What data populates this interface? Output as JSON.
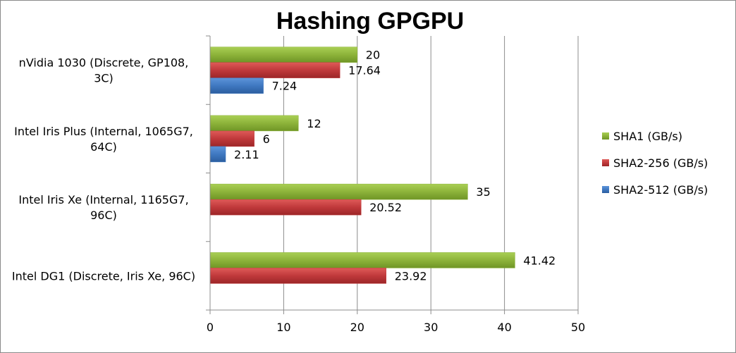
{
  "chart_data": {
    "type": "bar",
    "orientation": "horizontal",
    "title": "Hashing GPGPU",
    "categories": [
      [
        "nVidia 1030 (Discrete, GP108,",
        "3C)"
      ],
      [
        "Intel Iris Plus (Internal, 1065G7,",
        "64C)"
      ],
      [
        "Intel Iris Xe (Internal, 1165G7,",
        "96C)"
      ],
      [
        "Intel DG1 (Discrete, Iris Xe, 96C)"
      ]
    ],
    "series": [
      {
        "name": "SHA1 (GB/s)",
        "color": "#8db33a",
        "values": [
          20,
          12,
          35,
          41.42
        ],
        "labels": [
          "20",
          "12",
          "35",
          "41.42"
        ]
      },
      {
        "name": "SHA2-256 (GB/s)",
        "color": "#c0393b",
        "values": [
          17.64,
          6,
          20.52,
          23.92
        ],
        "labels": [
          "17.64",
          "6",
          "20.52",
          "23.92"
        ]
      },
      {
        "name": "SHA2-512 (GB/s)",
        "color": "#3f78c1",
        "values": [
          7.24,
          2.11,
          null,
          null
        ],
        "labels": [
          "7.24",
          "2.11",
          null,
          null
        ]
      }
    ],
    "xlim": [
      0,
      50
    ],
    "xticks": [
      0,
      10,
      20,
      30,
      40,
      50
    ],
    "grid": "vertical",
    "legend": "right"
  }
}
